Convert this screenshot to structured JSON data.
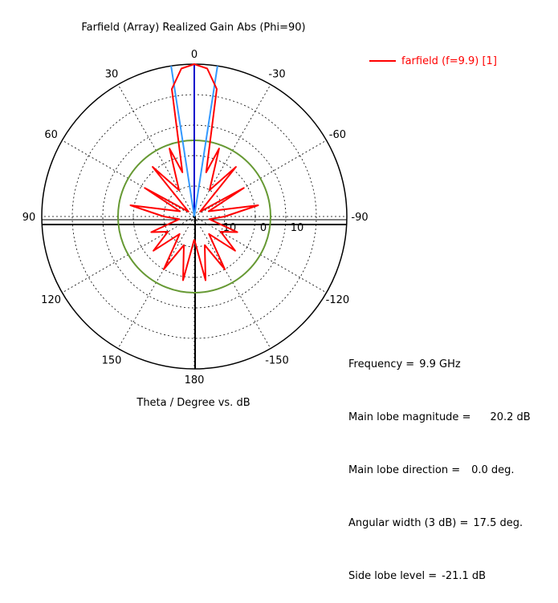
{
  "chart_data": {
    "type": "polar",
    "title": "Farfield (Array) Realized Gain Abs (Phi=90)",
    "xlabel": "Theta / Degree vs. dB",
    "angle_ticks": [
      "0",
      "30",
      "60",
      "90",
      "120",
      "150",
      "180",
      "-150",
      "-120",
      "-90",
      "-60",
      "-30"
    ],
    "radial_ticks": [
      "10",
      "0",
      "10"
    ],
    "radial_range_db": [
      -20,
      20
    ],
    "grid": true,
    "legend_position": "top-right",
    "series": [
      {
        "name": "farfield (f=9.9) [1]",
        "color": "#ff0000",
        "angle_deg": [
          -180,
          -170,
          -160,
          -150,
          -140,
          -130,
          -120,
          -110,
          -100,
          -90,
          -80,
          -70,
          -60,
          -50,
          -40,
          -30,
          -20,
          -15,
          -10,
          -5,
          0,
          5,
          10,
          15,
          20,
          30,
          40,
          50,
          60,
          70,
          80,
          90,
          100,
          110,
          120,
          130,
          140,
          150,
          160,
          170,
          180
        ],
        "gain_db": [
          -14,
          -3,
          -12,
          -4,
          -14,
          -6,
          -12,
          -8,
          -16,
          -12,
          -3,
          -16,
          -5,
          -18,
          -3,
          -12,
          -1,
          -8,
          14,
          19,
          20.2,
          19,
          14,
          -8,
          -1,
          -12,
          -3,
          -18,
          -5,
          -16,
          -3,
          -12,
          -16,
          -8,
          -12,
          -6,
          -14,
          -4,
          -12,
          -3,
          -14
        ]
      }
    ],
    "reference_circle_db": 0,
    "main_lobe_direction_deg": 0,
    "beamwidth_deg": 17.5
  },
  "legend": {
    "label": "farfield (f=9.9) [1]",
    "color": "#ff0000"
  },
  "info": {
    "frequency_label": "Frequency =",
    "frequency_value": "9.9 GHz",
    "magnitude_label": "Main lobe magnitude =",
    "magnitude_value": "20.2 dB",
    "direction_label": "Main lobe direction =",
    "direction_value": "0.0 deg.",
    "width_label": "Angular width (3 dB) =",
    "width_value": "17.5 deg.",
    "sidelobe_label": "Side lobe level =",
    "sidelobe_value": "-21.1 dB"
  },
  "colors": {
    "curve": "#ff0000",
    "reference": "#669933",
    "axis_main": "#0000cc",
    "beam_edges": "#3399ff"
  }
}
